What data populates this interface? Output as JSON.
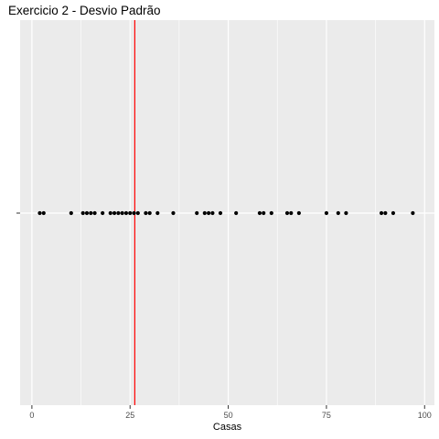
{
  "chart_data": {
    "type": "scatter",
    "title": "Exercicio 2 - Desvio Padrão",
    "xlabel": "Casas",
    "ylabel": "",
    "xlim": [
      -3,
      102.5
    ],
    "xticks": [
      0,
      25,
      50,
      75,
      100
    ],
    "x": [
      2,
      3,
      10,
      13,
      14,
      15,
      16,
      18,
      20,
      21,
      22,
      23,
      24,
      25,
      26,
      27,
      29,
      30,
      32,
      36,
      42,
      44,
      45,
      46,
      48,
      52,
      58,
      59,
      61,
      65,
      66,
      68,
      75,
      78,
      80,
      89,
      90,
      92,
      97
    ],
    "reference_line": {
      "x": 26.2,
      "color": "#ff0000"
    },
    "grid": true,
    "colors": {
      "panel": "#ebebeb",
      "grid": "#ffffff",
      "points": "#000000"
    }
  }
}
